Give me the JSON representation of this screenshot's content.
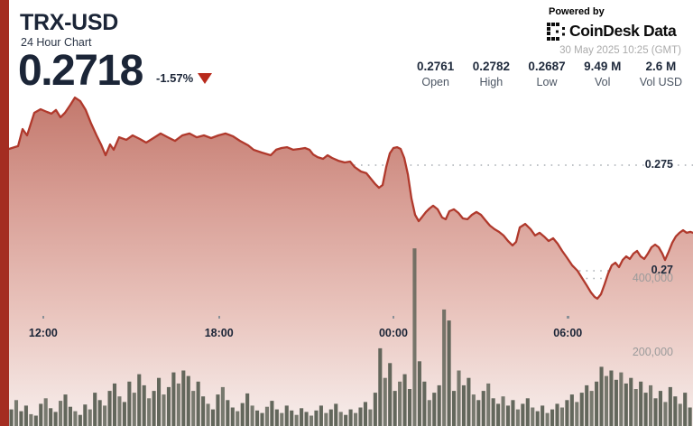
{
  "header": {
    "symbol": "TRX-USD",
    "subtitle": "24 Hour Chart",
    "price": "0.2718",
    "change": "-1.57%",
    "change_direction": "down",
    "powered_by": "Powered by",
    "brand": "CoinDesk Data",
    "timestamp": "30 May 2025 10:25 (GMT)"
  },
  "stats": [
    {
      "value": "0.2761",
      "label": "Open"
    },
    {
      "value": "0.2782",
      "label": "High"
    },
    {
      "value": "0.2687",
      "label": "Low"
    },
    {
      "value": "9.49 M",
      "label": "Vol"
    },
    {
      "value": "2.6 M",
      "label": "Vol USD"
    }
  ],
  "colors": {
    "accent_stripe": "#a42d21",
    "price_line": "#b0392c",
    "triangle_red": "#b82a1c",
    "fill_top": "#c1766a",
    "fill_mid1": "#d89e95",
    "fill_mid2": "#e9c4bd",
    "fill_bottom": "#f7eeec",
    "volume_bar": "#5b6054",
    "grid_dots": "#9aa0a6",
    "text_dark": "#1b2537",
    "text_gray": "#9b9b9b"
  },
  "chart_data": {
    "type": "area",
    "title": "TRX-USD 24 Hour Chart",
    "legend": null,
    "grid": "dotted-horizontal",
    "x_axis": {
      "labels": [
        "12:00",
        "18:00",
        "00:00",
        "06:00"
      ],
      "positions": [
        0.05,
        0.307,
        0.562,
        0.817
      ],
      "span_hours": 24,
      "start": "30 May 2025 10:25 (GMT) minus 24h"
    },
    "y_axis_price": {
      "side": "right",
      "ticks": [
        0.275,
        0.27
      ],
      "labels": [
        "0.275",
        "0.27"
      ],
      "visible_range_approx": [
        0.2685,
        0.2785
      ]
    },
    "y_axis_volume": {
      "side": "right",
      "ticks": [
        400000,
        200000
      ],
      "labels": [
        "400,000",
        "200,000"
      ],
      "range": [
        0,
        480000
      ]
    },
    "summary": {
      "open": 0.2761,
      "high": 0.2782,
      "low": 0.2687,
      "last": 0.2718,
      "change_pct": -1.57,
      "volume": "9.49 M",
      "volume_usd": "2.6 M"
    },
    "price_series": [
      [
        0,
        0.27577
      ],
      [
        0.0132,
        0.2759
      ],
      [
        0.0198,
        0.27671
      ],
      [
        0.0264,
        0.27641
      ],
      [
        0.0369,
        0.27748
      ],
      [
        0.0462,
        0.27765
      ],
      [
        0.0554,
        0.27752
      ],
      [
        0.062,
        0.27744
      ],
      [
        0.0686,
        0.27761
      ],
      [
        0.0752,
        0.27727
      ],
      [
        0.0818,
        0.27748
      ],
      [
        0.0897,
        0.27786
      ],
      [
        0.0963,
        0.2782
      ],
      [
        0.1042,
        0.27803
      ],
      [
        0.1121,
        0.27761
      ],
      [
        0.12,
        0.27697
      ],
      [
        0.128,
        0.27641
      ],
      [
        0.1346,
        0.27598
      ],
      [
        0.1412,
        0.27547
      ],
      [
        0.1478,
        0.27598
      ],
      [
        0.153,
        0.27573
      ],
      [
        0.1609,
        0.27632
      ],
      [
        0.1715,
        0.2762
      ],
      [
        0.1807,
        0.27641
      ],
      [
        0.1913,
        0.27624
      ],
      [
        0.2005,
        0.27607
      ],
      [
        0.2111,
        0.27628
      ],
      [
        0.2216,
        0.2765
      ],
      [
        0.2322,
        0.27632
      ],
      [
        0.2427,
        0.27615
      ],
      [
        0.2533,
        0.27641
      ],
      [
        0.2639,
        0.2765
      ],
      [
        0.2744,
        0.27632
      ],
      [
        0.285,
        0.27641
      ],
      [
        0.2955,
        0.27628
      ],
      [
        0.3061,
        0.27641
      ],
      [
        0.3166,
        0.2765
      ],
      [
        0.3272,
        0.27637
      ],
      [
        0.3377,
        0.27615
      ],
      [
        0.3496,
        0.27594
      ],
      [
        0.3575,
        0.27573
      ],
      [
        0.3694,
        0.2756
      ],
      [
        0.3826,
        0.27547
      ],
      [
        0.3905,
        0.27573
      ],
      [
        0.3984,
        0.27581
      ],
      [
        0.4063,
        0.27585
      ],
      [
        0.4156,
        0.27573
      ],
      [
        0.4248,
        0.27577
      ],
      [
        0.4327,
        0.27581
      ],
      [
        0.4393,
        0.27573
      ],
      [
        0.4446,
        0.27551
      ],
      [
        0.4512,
        0.27538
      ],
      [
        0.4591,
        0.2753
      ],
      [
        0.4657,
        0.27547
      ],
      [
        0.4723,
        0.27534
      ],
      [
        0.4815,
        0.27521
      ],
      [
        0.4908,
        0.27513
      ],
      [
        0.4987,
        0.27517
      ],
      [
        0.5053,
        0.27491
      ],
      [
        0.5145,
        0.2747
      ],
      [
        0.5224,
        0.27462
      ],
      [
        0.529,
        0.27436
      ],
      [
        0.5356,
        0.2741
      ],
      [
        0.5409,
        0.27393
      ],
      [
        0.5462,
        0.27406
      ],
      [
        0.5514,
        0.27491
      ],
      [
        0.5567,
        0.27556
      ],
      [
        0.562,
        0.27581
      ],
      [
        0.5673,
        0.27585
      ],
      [
        0.5726,
        0.27577
      ],
      [
        0.5778,
        0.27534
      ],
      [
        0.5831,
        0.27457
      ],
      [
        0.5884,
        0.27342
      ],
      [
        0.5937,
        0.27265
      ],
      [
        0.5989,
        0.27235
      ],
      [
        0.6042,
        0.27256
      ],
      [
        0.6095,
        0.27278
      ],
      [
        0.6148,
        0.27295
      ],
      [
        0.62,
        0.27308
      ],
      [
        0.6266,
        0.27291
      ],
      [
        0.6332,
        0.27252
      ],
      [
        0.6385,
        0.27244
      ],
      [
        0.6438,
        0.27282
      ],
      [
        0.6504,
        0.27291
      ],
      [
        0.657,
        0.27274
      ],
      [
        0.6636,
        0.27248
      ],
      [
        0.6702,
        0.27244
      ],
      [
        0.6768,
        0.27265
      ],
      [
        0.6834,
        0.27278
      ],
      [
        0.69,
        0.27265
      ],
      [
        0.6966,
        0.27239
      ],
      [
        0.7031,
        0.27214
      ],
      [
        0.7097,
        0.27197
      ],
      [
        0.7163,
        0.27184
      ],
      [
        0.7229,
        0.27167
      ],
      [
        0.7295,
        0.27141
      ],
      [
        0.7361,
        0.2712
      ],
      [
        0.7414,
        0.27137
      ],
      [
        0.7467,
        0.27205
      ],
      [
        0.7546,
        0.27222
      ],
      [
        0.7625,
        0.27197
      ],
      [
        0.7691,
        0.27167
      ],
      [
        0.7757,
        0.2718
      ],
      [
        0.7823,
        0.27162
      ],
      [
        0.7889,
        0.27141
      ],
      [
        0.7955,
        0.27154
      ],
      [
        0.8021,
        0.27128
      ],
      [
        0.8087,
        0.27094
      ],
      [
        0.8153,
        0.27064
      ],
      [
        0.8232,
        0.27026
      ],
      [
        0.8311,
        0.27
      ],
      [
        0.8377,
        0.26966
      ],
      [
        0.8443,
        0.26932
      ],
      [
        0.8509,
        0.26897
      ],
      [
        0.8562,
        0.26876
      ],
      [
        0.8601,
        0.26868
      ],
      [
        0.8654,
        0.26889
      ],
      [
        0.8707,
        0.26936
      ],
      [
        0.876,
        0.26987
      ],
      [
        0.8813,
        0.27026
      ],
      [
        0.8865,
        0.27038
      ],
      [
        0.8918,
        0.27017
      ],
      [
        0.8971,
        0.27051
      ],
      [
        0.9024,
        0.27068
      ],
      [
        0.9077,
        0.27056
      ],
      [
        0.9129,
        0.27081
      ],
      [
        0.9182,
        0.27094
      ],
      [
        0.9235,
        0.27068
      ],
      [
        0.9288,
        0.27056
      ],
      [
        0.9341,
        0.27081
      ],
      [
        0.9393,
        0.27111
      ],
      [
        0.9446,
        0.27124
      ],
      [
        0.9499,
        0.27111
      ],
      [
        0.9552,
        0.27081
      ],
      [
        0.9591,
        0.27051
      ],
      [
        0.9644,
        0.2709
      ],
      [
        0.9697,
        0.27133
      ],
      [
        0.975,
        0.27163
      ],
      [
        0.9802,
        0.2718
      ],
      [
        0.9855,
        0.27192
      ],
      [
        0.9908,
        0.2718
      ],
      [
        0.996,
        0.27184
      ],
      [
        1,
        0.2718
      ]
    ],
    "volume_series": [
      45000,
      70000,
      40000,
      55000,
      32000,
      28000,
      60000,
      75000,
      48000,
      38000,
      68000,
      85000,
      52000,
      40000,
      30000,
      58000,
      45000,
      90000,
      70000,
      55000,
      95000,
      115000,
      80000,
      65000,
      120000,
      90000,
      140000,
      110000,
      75000,
      95000,
      130000,
      85000,
      105000,
      145000,
      115000,
      150000,
      135000,
      95000,
      120000,
      80000,
      60000,
      45000,
      85000,
      105000,
      70000,
      50000,
      40000,
      62000,
      88000,
      55000,
      42000,
      35000,
      52000,
      68000,
      45000,
      35000,
      55000,
      42000,
      30000,
      48000,
      38000,
      28000,
      42000,
      55000,
      35000,
      45000,
      60000,
      38000,
      30000,
      45000,
      35000,
      50000,
      65000,
      45000,
      90000,
      210000,
      130000,
      170000,
      95000,
      120000,
      140000,
      100000,
      480000,
      175000,
      120000,
      70000,
      90000,
      110000,
      315000,
      285000,
      95000,
      150000,
      110000,
      130000,
      85000,
      70000,
      95000,
      115000,
      75000,
      60000,
      80000,
      55000,
      70000,
      45000,
      60000,
      75000,
      50000,
      40000,
      55000,
      35000,
      45000,
      60000,
      50000,
      70000,
      85000,
      65000,
      90000,
      110000,
      95000,
      120000,
      160000,
      135000,
      150000,
      125000,
      145000,
      115000,
      130000,
      100000,
      120000,
      90000,
      110000,
      75000,
      95000,
      65000,
      105000,
      80000,
      60000,
      90000,
      50000
    ]
  }
}
